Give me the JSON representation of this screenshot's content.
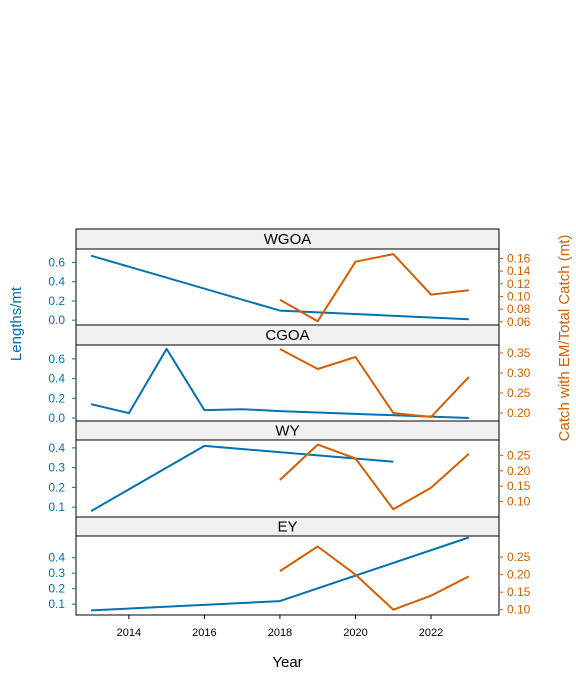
{
  "colors": {
    "left_series": "#0072B2",
    "right_series": "#D55E00",
    "strip_fill": "#F0F0F0",
    "frame": "#000000"
  },
  "chart_data": {
    "type": "line",
    "xlabel": "Year",
    "ylabel_left": "Lengths/mt",
    "ylabel_right": "Catch with EM/Total Catch (mt)",
    "xlim": [
      2012.6,
      2023.8
    ],
    "xticks": [
      2014,
      2016,
      2018,
      2020,
      2022
    ],
    "grid": false,
    "panels": [
      {
        "title": "WGOA",
        "left_axis": {
          "ylim": [
            -0.05,
            0.74
          ],
          "ticks": [
            0.0,
            0.2,
            0.4,
            0.6
          ],
          "tick_labels": [
            "0.0",
            "0.2",
            "0.4",
            "0.6"
          ]
        },
        "right_axis": {
          "ylim": [
            0.055,
            0.175
          ],
          "ticks": [
            0.06,
            0.08,
            0.1,
            0.12,
            0.14,
            0.16
          ],
          "tick_labels": [
            "0.06",
            "0.08",
            "0.10",
            "0.12",
            "0.14",
            "0.16"
          ]
        },
        "left_series": {
          "x": [
            2013,
            2018,
            2023
          ],
          "y": [
            0.67,
            0.1,
            0.01
          ]
        },
        "right_series": {
          "x": [
            2018,
            2019,
            2020,
            2021,
            2022,
            2023
          ],
          "y": [
            0.095,
            0.061,
            0.155,
            0.167,
            0.103,
            0.11
          ]
        }
      },
      {
        "title": "CGOA",
        "left_axis": {
          "ylim": [
            -0.03,
            0.74
          ],
          "ticks": [
            0.0,
            0.2,
            0.4,
            0.6
          ],
          "tick_labels": [
            "0.0",
            "0.2",
            "0.4",
            "0.6"
          ]
        },
        "right_axis": {
          "ylim": [
            0.18,
            0.37
          ],
          "ticks": [
            0.2,
            0.25,
            0.3,
            0.35
          ],
          "tick_labels": [
            "0.20",
            "0.25",
            "0.30",
            "0.35"
          ]
        },
        "left_series": {
          "x": [
            2013,
            2014,
            2015,
            2016,
            2017,
            2018,
            2023
          ],
          "y": [
            0.14,
            0.05,
            0.7,
            0.08,
            0.09,
            0.07,
            0.0
          ]
        },
        "right_series": {
          "x": [
            2018,
            2019,
            2020,
            2021,
            2022,
            2023
          ],
          "y": [
            0.36,
            0.31,
            0.34,
            0.2,
            0.19,
            0.29
          ]
        }
      },
      {
        "title": "WY",
        "left_axis": {
          "ylim": [
            0.05,
            0.44
          ],
          "ticks": [
            0.1,
            0.2,
            0.3,
            0.4
          ],
          "tick_labels": [
            "0.1",
            "0.2",
            "0.3",
            "0.4"
          ]
        },
        "right_axis": {
          "ylim": [
            0.05,
            0.3
          ],
          "ticks": [
            0.1,
            0.15,
            0.2,
            0.25
          ],
          "tick_labels": [
            "0.10",
            "0.15",
            "0.20",
            "0.25"
          ]
        },
        "left_series": {
          "x": [
            2013,
            2016,
            2021
          ],
          "y": [
            0.08,
            0.41,
            0.33
          ]
        },
        "right_series": {
          "x": [
            2018,
            2019,
            2020,
            2021,
            2022,
            2023
          ],
          "y": [
            0.17,
            0.285,
            0.24,
            0.075,
            0.145,
            0.255
          ]
        }
      },
      {
        "title": "EY",
        "left_axis": {
          "ylim": [
            0.03,
            0.54
          ],
          "ticks": [
            0.1,
            0.2,
            0.3,
            0.4
          ],
          "tick_labels": [
            "0.1",
            "0.2",
            "0.3",
            "0.4"
          ]
        },
        "right_axis": {
          "ylim": [
            0.085,
            0.31
          ],
          "ticks": [
            0.1,
            0.15,
            0.2,
            0.25
          ],
          "tick_labels": [
            "0.10",
            "0.15",
            "0.20",
            "0.25"
          ]
        },
        "left_series": {
          "x": [
            2013,
            2018,
            2023
          ],
          "y": [
            0.06,
            0.12,
            0.53
          ]
        },
        "right_series": {
          "x": [
            2018,
            2019,
            2020,
            2021,
            2022,
            2023
          ],
          "y": [
            0.21,
            0.28,
            0.2,
            0.1,
            0.14,
            0.195
          ]
        }
      }
    ]
  }
}
